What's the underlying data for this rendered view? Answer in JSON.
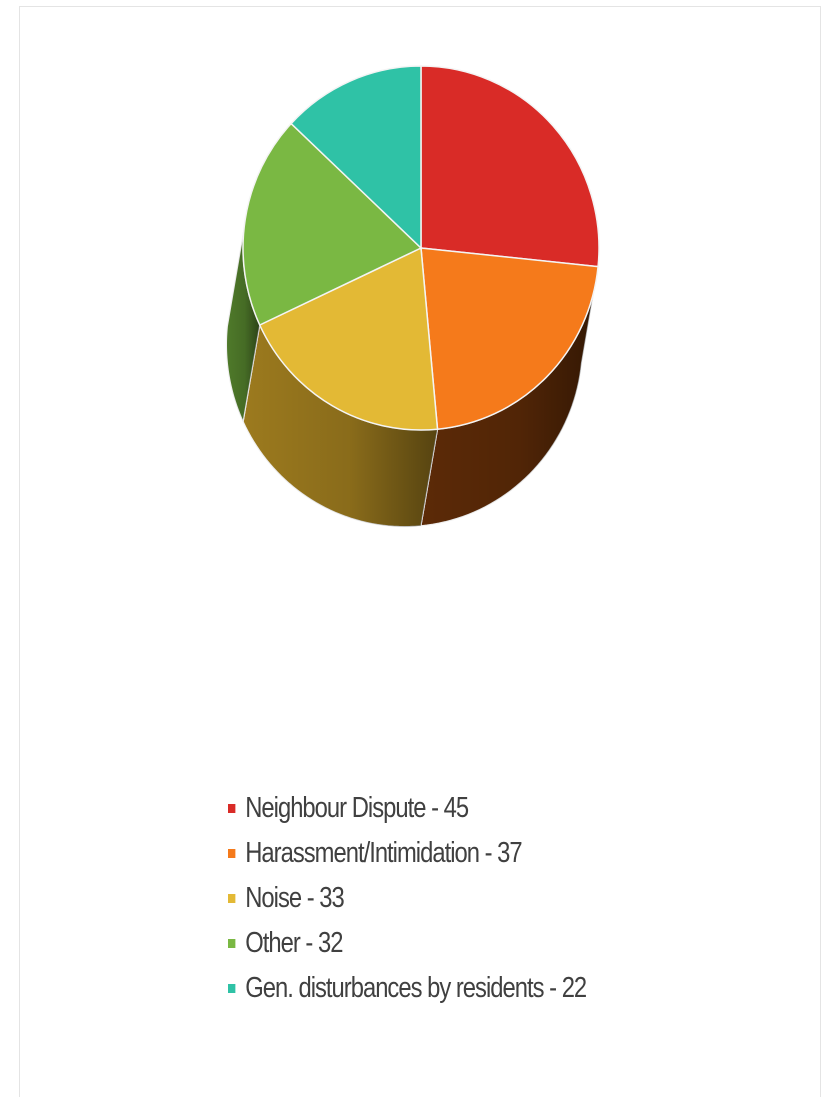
{
  "chart_data": {
    "type": "pie",
    "style": "3d",
    "title": "",
    "categories": [
      "Neighbour Dispute",
      "Harassment/Intimidation",
      "Noise",
      "Other",
      "Gen. disturbances by residents"
    ],
    "values": [
      45,
      37,
      33,
      32,
      22
    ],
    "colors": [
      "#d92b27",
      "#f57a1b",
      "#e3b935",
      "#7ab843",
      "#2fc2a6"
    ],
    "side_colors": [
      "#8a1a17",
      "#5c2a07",
      "#9c7a1e",
      "#4f7a2a",
      "#1d8572"
    ],
    "legend_placement": "bottom",
    "legend": [
      "Neighbour Dispute - 45",
      "Harassment/Intimidation - 37",
      "Noise - 33",
      "Other - 32",
      "Gen. disturbances by residents - 22"
    ]
  }
}
